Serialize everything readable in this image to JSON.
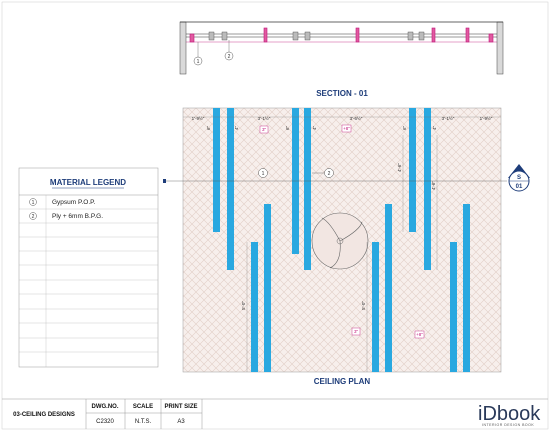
{
  "section_title": "SECTION - 01",
  "plan_title": "CEILING PLAN",
  "legend": {
    "title": "MATERIAL LEGEND",
    "items": [
      {
        "num": "1",
        "label": "Gypsum P.O.P."
      },
      {
        "num": "2",
        "label": "Ply + 6mm B.P.G."
      }
    ]
  },
  "section_marker": {
    "letter": "S",
    "number": "01"
  },
  "callouts": {
    "one": "1",
    "two": "2",
    "sec_one": "1",
    "sec_two": "2"
  },
  "dims": {
    "top": [
      "1'-9½\"",
      "3'-1½\"",
      "3'-6½\"",
      "3'-1½\"",
      "1'-9½\""
    ],
    "small": [
      "6\"",
      "4\"",
      "6\"",
      "4\"",
      "6\"",
      "4\""
    ],
    "tags": [
      "+8\"",
      "3\"",
      "3\"",
      "+8\""
    ],
    "verticals": [
      "4'-6\"",
      "4'-6\"",
      "5'-0\"",
      "5'-0\""
    ]
  },
  "title_block": {
    "drawing_name": "03-CEILING DESIGNS",
    "dwg_no_label": "DWG.NO.",
    "dwg_no": "C2320",
    "scale_label": "SCALE",
    "scale": "N.T.S.",
    "print_size_label": "PRINT SIZE",
    "print_size": "A3"
  },
  "logo": {
    "text": "iDbook",
    "sub": "INTERIOR DESIGN BOOK"
  },
  "colors": {
    "panel": "#29a8e0",
    "panel_dark": "#1f8fc4",
    "title": "#1e3d7a",
    "accent": "#c0157a",
    "hatch": "#e6d6cf"
  }
}
